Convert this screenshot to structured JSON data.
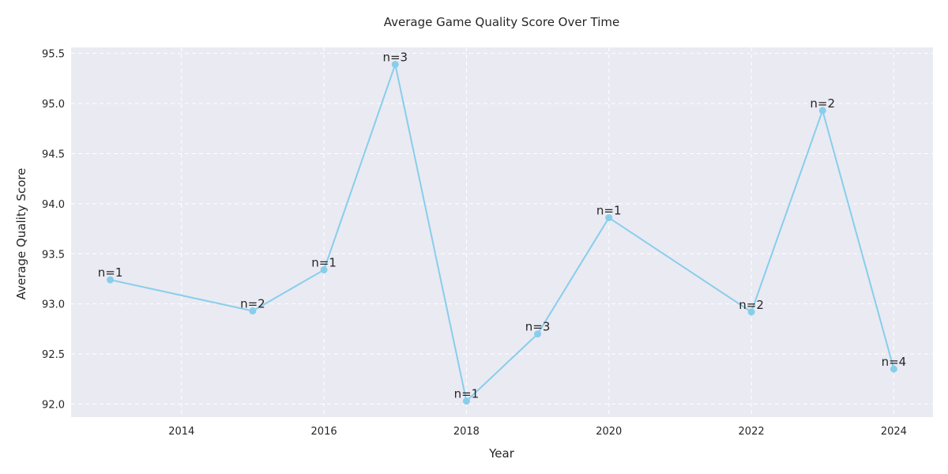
{
  "chart_data": {
    "type": "line",
    "title": "Average Game Quality Score Over Time",
    "xlabel": "Year",
    "ylabel": "Average Quality Score",
    "xlim": [
      2012.45,
      2024.55
    ],
    "ylim": [
      91.87,
      95.56
    ],
    "xticks": [
      2014,
      2016,
      2018,
      2020,
      2022,
      2024
    ],
    "yticks": [
      92.0,
      92.5,
      93.0,
      93.5,
      94.0,
      94.5,
      95.0,
      95.5
    ],
    "ytick_labels": [
      "92.0",
      "92.5",
      "93.0",
      "93.5",
      "94.0",
      "94.5",
      "95.0",
      "95.5"
    ],
    "grid": true,
    "series": [
      {
        "color": "#87ceeb",
        "x": [
          2013,
          2015,
          2016,
          2017,
          2018,
          2019,
          2020,
          2022,
          2023,
          2024
        ],
        "y": [
          93.24,
          92.93,
          93.34,
          95.39,
          92.03,
          92.7,
          93.86,
          92.92,
          94.93,
          92.35
        ],
        "labels": [
          "n=1",
          "n=2",
          "n=1",
          "n=3",
          "n=1",
          "n=3",
          "n=1",
          "n=2",
          "n=2",
          "n=4"
        ]
      }
    ],
    "colors": {
      "plot_background": "#eaeaf2",
      "grid": "#ffffff"
    }
  }
}
